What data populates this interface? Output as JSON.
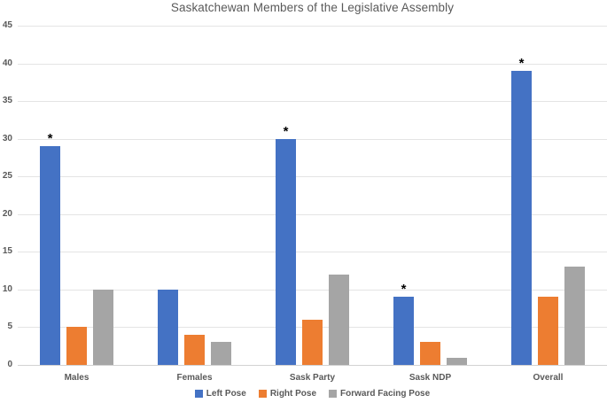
{
  "chart_data": {
    "type": "bar",
    "title": "Saskatchewan Members of the Legislative Assembly",
    "categories": [
      "Males",
      "Females",
      "Sask Party",
      "Sask NDP",
      "Overall"
    ],
    "series": [
      {
        "name": "Left Pose",
        "color": "#4472C4",
        "values": [
          29,
          10,
          30,
          9,
          39
        ]
      },
      {
        "name": "Right Pose",
        "color": "#ED7D31",
        "values": [
          5,
          4,
          6,
          3,
          9
        ]
      },
      {
        "name": "Forward Facing Pose",
        "color": "#A5A5A5",
        "values": [
          10,
          3,
          12,
          1,
          13
        ]
      }
    ],
    "annotations": {
      "symbol": "*",
      "on_series": "Left Pose",
      "flags": [
        true,
        false,
        true,
        true,
        true
      ]
    },
    "xlabel": "",
    "ylabel": "",
    "ylim": [
      0,
      45
    ],
    "yticks": [
      0,
      5,
      10,
      15,
      20,
      25,
      30,
      35,
      40,
      45
    ],
    "grid": true,
    "legend_position": "bottom",
    "colors": {
      "text": "#595959",
      "gridline": "#E4E4E4",
      "axis_line": "#D2D2D2",
      "background": "#FFFFFF",
      "annotation": "#000000"
    }
  }
}
